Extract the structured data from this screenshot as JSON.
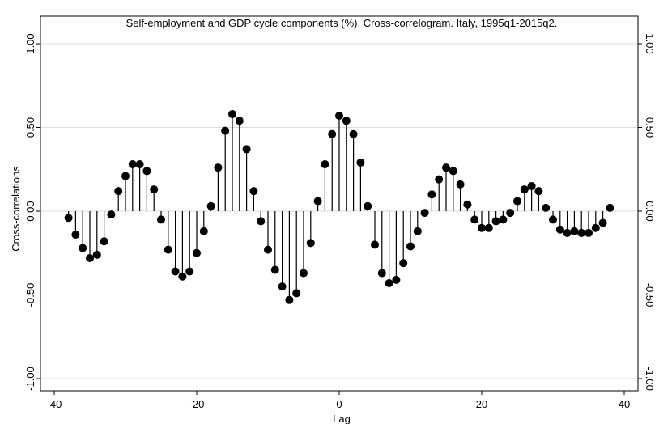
{
  "chart_data": {
    "type": "stem",
    "title": "Self-employment and GDP cycle components (%). Cross-correlogram. Italy, 1995q1-2015q2.",
    "xlabel": "Lag",
    "ylabel": "Cross-correlations",
    "xlim": [
      -40,
      40
    ],
    "ylim": [
      -1.0,
      1.0
    ],
    "x_ticks": [
      -40,
      -20,
      0,
      20,
      40
    ],
    "x_tick_labels": [
      "-40",
      "-20",
      "0",
      "20",
      "40"
    ],
    "y_ticks": [
      -1.0,
      -0.5,
      0.0,
      0.5,
      1.0
    ],
    "y_tick_labels": [
      "-1.00",
      "-0.50",
      "0.00",
      "0.50",
      "1.00"
    ],
    "right_axis_ticks": true,
    "grid": "horizontal",
    "colors": {
      "marker": "#000000",
      "stem": "#000000",
      "grid": "#dcdcdc",
      "frame": "#000000"
    },
    "x": [
      -38,
      -37,
      -36,
      -35,
      -34,
      -33,
      -32,
      -31,
      -30,
      -29,
      -28,
      -27,
      -26,
      -25,
      -24,
      -23,
      -22,
      -21,
      -20,
      -19,
      -18,
      -17,
      -16,
      -15,
      -14,
      -13,
      -12,
      -11,
      -10,
      -9,
      -8,
      -7,
      -6,
      -5,
      -4,
      -3,
      -2,
      -1,
      0,
      1,
      2,
      3,
      4,
      5,
      6,
      7,
      8,
      9,
      10,
      11,
      12,
      13,
      14,
      15,
      16,
      17,
      18,
      19,
      20,
      21,
      22,
      23,
      24,
      25,
      26,
      27,
      28,
      29,
      30,
      31,
      32,
      33,
      34,
      35,
      36,
      37,
      38
    ],
    "values": [
      -0.04,
      -0.14,
      -0.22,
      -0.28,
      -0.26,
      -0.18,
      -0.02,
      0.12,
      0.21,
      0.28,
      0.28,
      0.24,
      0.13,
      -0.05,
      -0.23,
      -0.36,
      -0.39,
      -0.36,
      -0.25,
      -0.12,
      0.03,
      0.26,
      0.48,
      0.58,
      0.54,
      0.37,
      0.12,
      -0.06,
      -0.23,
      -0.35,
      -0.45,
      -0.53,
      -0.49,
      -0.37,
      -0.19,
      0.06,
      0.28,
      0.46,
      0.57,
      0.54,
      0.46,
      0.29,
      0.03,
      -0.2,
      -0.37,
      -0.43,
      -0.41,
      -0.31,
      -0.21,
      -0.12,
      -0.01,
      0.1,
      0.19,
      0.26,
      0.24,
      0.16,
      0.04,
      -0.05,
      -0.1,
      -0.1,
      -0.06,
      -0.05,
      -0.01,
      0.06,
      0.13,
      0.15,
      0.12,
      0.02,
      -0.05,
      -0.11,
      -0.13,
      -0.12,
      -0.13,
      -0.13,
      -0.1,
      -0.07,
      0.02
    ]
  }
}
